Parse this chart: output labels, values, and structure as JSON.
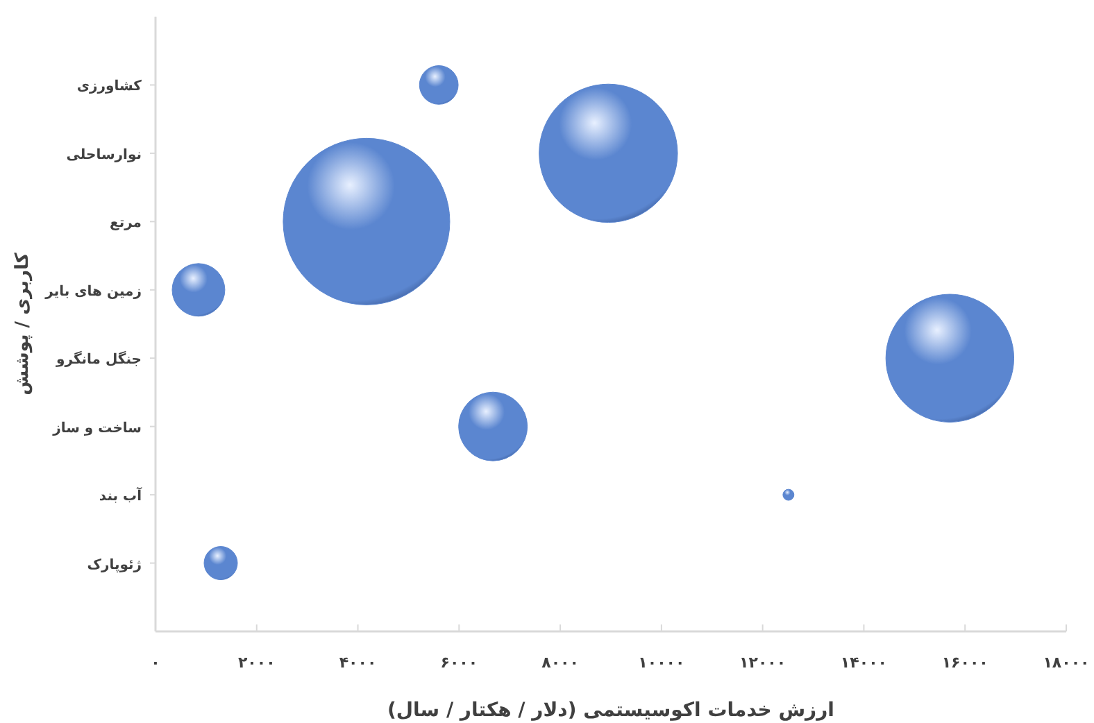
{
  "chart_data": {
    "type": "bubble",
    "orientation": "horizontal",
    "xlabel": "ارزش خدمات اکوسیستمی (دلار / هکتار / سال)",
    "ylabel": "کاربری / پوشش",
    "categories": [
      "کشاورزی",
      "نوارساحلی",
      "مرتع",
      "زمین های بایر",
      "جنگل مانگرو",
      "ساخت و ساز",
      "آب بند",
      "ژئوپارک"
    ],
    "values": [
      5600,
      8950,
      4170,
      850,
      15700,
      6670,
      12510,
      1290
    ],
    "sizes": [
      0.054,
      0.69,
      1,
      0.1,
      0.59,
      0.17,
      0.0044,
      0.04
    ],
    "color": "#5b86d0",
    "xlim": [
      0,
      18000
    ],
    "xticks": [
      {
        "value": 0,
        "label": "۰"
      },
      {
        "value": 2000,
        "label": "۲۰۰۰"
      },
      {
        "value": 4000,
        "label": "۴۰۰۰"
      },
      {
        "value": 6000,
        "label": "۶۰۰۰"
      },
      {
        "value": 8000,
        "label": "۸۰۰۰"
      },
      {
        "value": 10000,
        "label": "۱۰۰۰۰"
      },
      {
        "value": 12000,
        "label": "۱۲۰۰۰"
      },
      {
        "value": 14000,
        "label": "۱۴۰۰۰"
      },
      {
        "value": 16000,
        "label": "۱۶۰۰۰"
      },
      {
        "value": 18000,
        "label": "۱۸۰۰۰"
      }
    ]
  }
}
